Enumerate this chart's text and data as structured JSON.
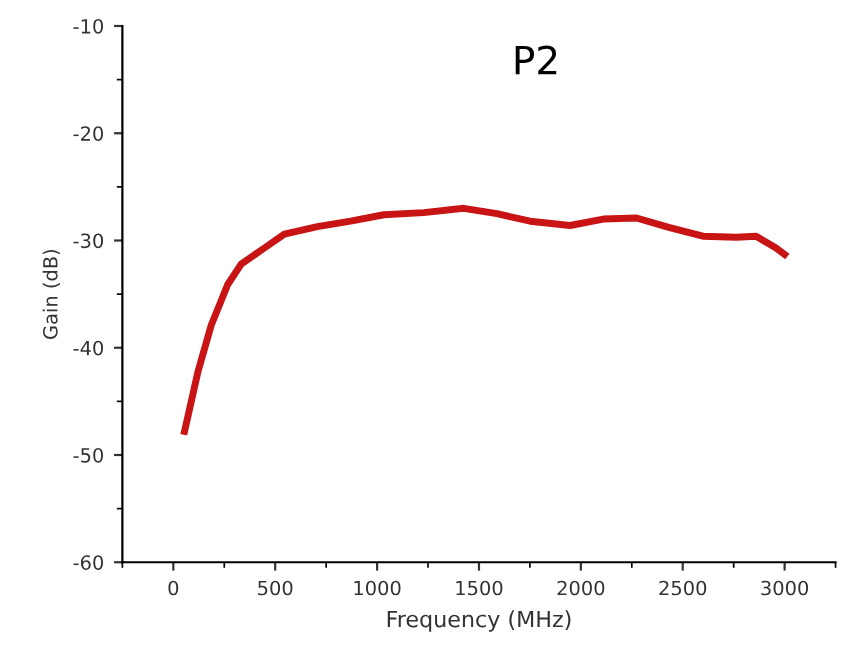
{
  "chart_data": {
    "type": "line",
    "title": "P2",
    "xlabel": "Frequency (MHz)",
    "ylabel": "Gain (dB)",
    "xlim": [
      -250,
      3250
    ],
    "xticks": [
      0,
      500,
      1000,
      1500,
      2000,
      2500,
      3000
    ],
    "ylim": [
      -60,
      -10
    ],
    "yticks": [
      -60,
      -50,
      -40,
      -30,
      -20,
      -10
    ],
    "grid": false,
    "legend": false,
    "marker": "none",
    "line_style": "solid",
    "series": [
      {
        "color": "#c81414",
        "x": [
          55,
          120,
          186,
          267,
          333,
          447,
          545,
          707,
          870,
          1033,
          1229,
          1425,
          1588,
          1751,
          1947,
          2110,
          2273,
          2436,
          2599,
          2762,
          2860,
          2958,
          3000
        ],
        "values": [
          -47.8,
          -42.3,
          -37.9,
          -34.1,
          -32.2,
          -30.7,
          -29.4,
          -28.7,
          -28.2,
          -27.6,
          -27.4,
          -27.0,
          -27.5,
          -28.2,
          -28.6,
          -28.0,
          -27.9,
          -28.8,
          -29.6,
          -29.7,
          -29.6,
          -30.7,
          -31.3
        ]
      }
    ]
  }
}
